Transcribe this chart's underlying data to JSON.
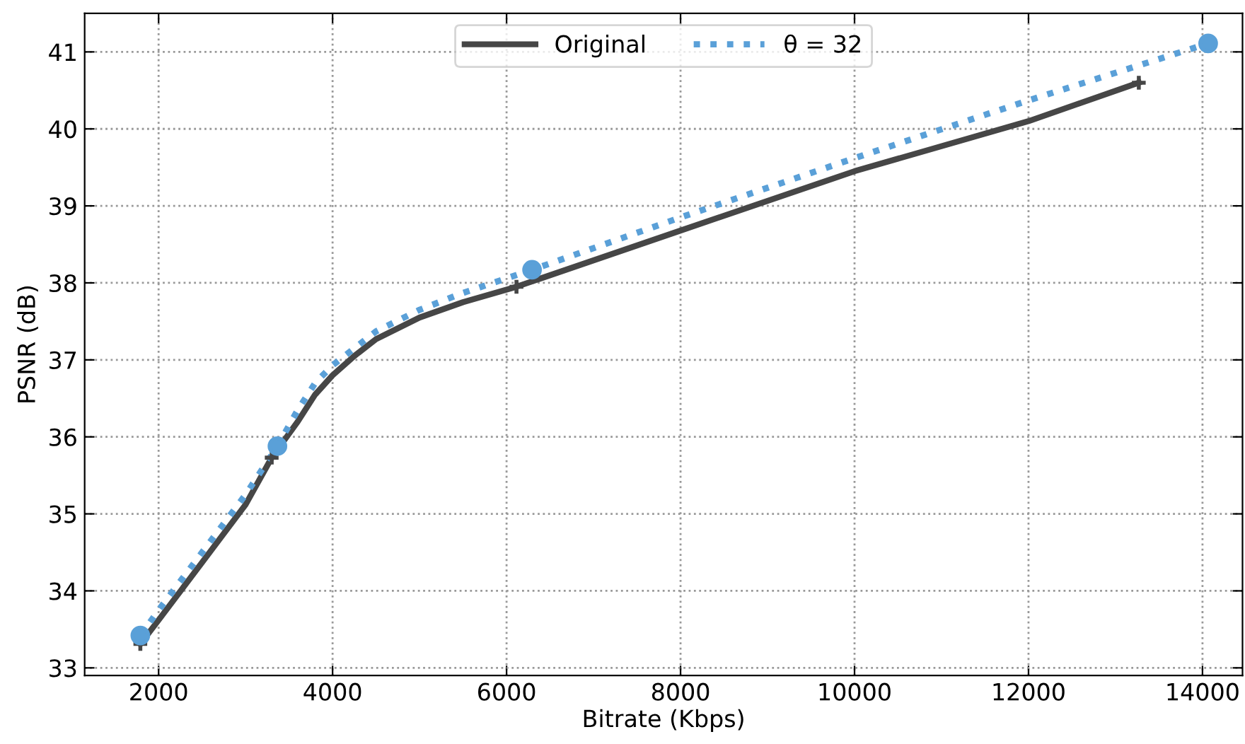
{
  "chart_data": {
    "type": "line",
    "xlabel": "Bitrate (Kbps)",
    "ylabel": "PSNR (dB)",
    "xlim": [
      1150,
      14460
    ],
    "ylim": [
      32.9,
      41.5
    ],
    "xticks": [
      2000,
      4000,
      6000,
      8000,
      10000,
      12000,
      14000
    ],
    "yticks": [
      33,
      34,
      35,
      36,
      37,
      38,
      39,
      40,
      41
    ],
    "grid": true,
    "legend": "top",
    "series": [
      {
        "name": "Original",
        "color": "#464646",
        "line_style": "solid",
        "x": [
          1790,
          2000,
          2500,
          3000,
          3300,
          3600,
          3800,
          4000,
          4250,
          4500,
          5000,
          5500,
          6114,
          8000,
          10000,
          12000,
          13268
        ],
        "values": [
          33.31,
          33.62,
          34.37,
          35.12,
          35.73,
          36.2,
          36.55,
          36.8,
          37.05,
          37.27,
          37.55,
          37.75,
          37.95,
          38.68,
          39.45,
          40.1,
          40.6
        ]
      },
      {
        "name": "θ = 32",
        "color": "#5aa0d8",
        "line_style": "dotted",
        "x": [
          1790,
          2000,
          2500,
          3000,
          3366,
          3600,
          3800,
          4000,
          4250,
          4500,
          5000,
          5500,
          6293,
          8000,
          10000,
          12000,
          14065
        ],
        "values": [
          33.42,
          33.75,
          34.5,
          35.25,
          35.88,
          36.35,
          36.7,
          36.93,
          37.15,
          37.37,
          37.65,
          37.87,
          38.17,
          38.85,
          39.62,
          40.37,
          41.11
        ]
      },
      {
        "type": "scatter",
        "color": "#464646",
        "marker": "cross",
        "x": [
          1790,
          3300,
          6114,
          13268
        ],
        "values": [
          33.31,
          35.73,
          37.95,
          40.6
        ]
      },
      {
        "type": "scatter",
        "color": "#5aa0d8",
        "marker": "circle",
        "x": [
          1790,
          3366,
          6293,
          14065
        ],
        "values": [
          33.42,
          35.88,
          38.17,
          41.11
        ]
      }
    ]
  }
}
